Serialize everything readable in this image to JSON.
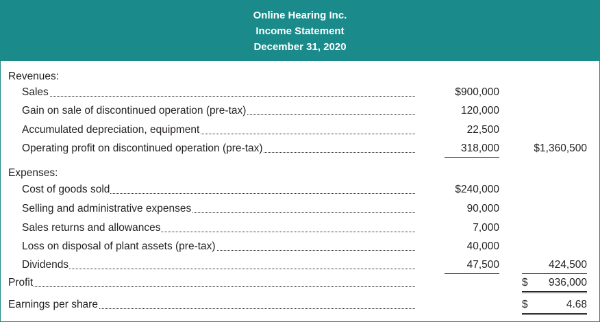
{
  "header": {
    "company": "Online Hearing Inc.",
    "statement": "Income Statement",
    "date": "December 31, 2020"
  },
  "revenues": {
    "heading": "Revenues:",
    "items": [
      {
        "label": "Sales",
        "amount": "$900,000"
      },
      {
        "label": "Gain on sale of discontinued operation (pre-tax)",
        "amount": "120,000"
      },
      {
        "label": "Accumulated depreciation, equipment",
        "amount": "22,500"
      },
      {
        "label": "Operating profit on discontinued operation (pre-tax)",
        "amount": "318,000",
        "total": "$1,360,500"
      }
    ]
  },
  "expenses": {
    "heading": "Expenses:",
    "items": [
      {
        "label": "Cost of goods sold",
        "amount": "$240,000"
      },
      {
        "label": "Selling and administrative expenses",
        "amount": "90,000"
      },
      {
        "label": "Sales returns and allowances",
        "amount": "7,000"
      },
      {
        "label": "Loss on disposal of plant assets (pre-tax)",
        "amount": "40,000"
      },
      {
        "label": "Dividends",
        "amount": "47,500",
        "total": "424,500"
      }
    ]
  },
  "profit": {
    "label": "Profit",
    "currency": "$",
    "value": "936,000"
  },
  "eps": {
    "label": "Earnings per share",
    "currency": "$",
    "value": "4.68"
  },
  "colors": {
    "header_bg": "#1a8a8a",
    "header_text": "#ffffff"
  }
}
